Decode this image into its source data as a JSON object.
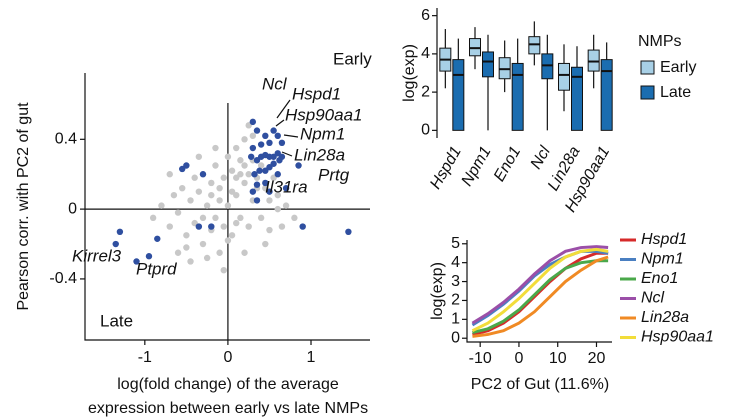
{
  "chart_data": [
    {
      "type": "scatter",
      "y_label": "Pearson corr. with PC2 of gut",
      "x_label": [
        "log(fold change) of the average",
        "expression between early vs late NMPs"
      ],
      "xlim": [
        -1.72,
        1.71
      ],
      "ylim": [
        -0.75,
        0.78
      ],
      "xticks": [
        -1,
        0,
        1
      ],
      "yticks": [
        -0.4,
        0,
        0.4
      ],
      "annotations": [
        "Early",
        "Late",
        "Ncl",
        "Hspd1",
        "Hsp90aa1",
        "Npm1",
        "Lin28a",
        "Prtg",
        "Il31ra",
        "Kirrel3",
        "Ptprd"
      ],
      "series": [
        {
          "color": "#c8c8c8",
          "x": [
            -0.9,
            -0.8,
            -0.7,
            -0.65,
            -0.6,
            -0.55,
            -0.5,
            -0.45,
            -0.4,
            -0.4,
            -0.35,
            -0.3,
            -0.3,
            -0.25,
            -0.2,
            -0.2,
            -0.15,
            -0.15,
            -0.1,
            -0.1,
            -0.05,
            -0.05,
            0,
            0,
            0.05,
            0.05,
            0.1,
            0.1,
            0.15,
            0.15,
            0.2,
            0.2,
            0.25,
            0.25,
            0.3,
            0.3,
            0.35,
            0.4,
            0.45,
            0.5,
            0.55,
            0.6,
            0.7,
            0.8,
            -0.6,
            -0.45,
            -0.3,
            -0.2,
            -0.1,
            0,
            0.1,
            0.2,
            0.3,
            0.4,
            0.5,
            0.6,
            -0.25,
            -0.15,
            0.05,
            0.15,
            0.25,
            0.35,
            -0.5,
            -0.35,
            0.45,
            0.65,
            -0.05,
            0.1,
            0.2,
            -0.7
          ],
          "y": [
            -0.05,
            0.02,
            -0.1,
            0.08,
            -0.02,
            0.12,
            -0.15,
            0.05,
            0.18,
            -0.08,
            0.1,
            0.2,
            -0.2,
            0.02,
            0.15,
            -0.12,
            0.25,
            -0.05,
            0.05,
            -0.25,
            0.18,
            -0.1,
            0.3,
            0.02,
            0.22,
            -0.15,
            0.35,
            0.08,
            0.28,
            -0.05,
            0.4,
            0.15,
            0.2,
            -0.1,
            0.42,
            0.05,
            0.18,
            0.25,
            0.12,
            0.05,
            0.18,
            0.08,
            0.02,
            -0.05,
            -0.25,
            -0.3,
            -0.05,
            0.08,
            0.12,
            -0.18,
            -0.08,
            0.25,
            0.28,
            -0.05,
            -0.12,
            0.0,
            -0.28,
            0.35,
            0.1,
            0.2,
            0.48,
            0.12,
            -0.22,
            0.3,
            -0.2,
            -0.1,
            -0.35,
            0.18,
            -0.25,
            0.2
          ]
        },
        {
          "color": "#2f4fa0",
          "x": [
            -1.35,
            -1.3,
            -1.1,
            -0.95,
            -0.85,
            -0.55,
            -0.5,
            -0.3,
            -0.35,
            -0.2,
            0.3,
            0.35,
            0.4,
            0.45,
            0.5,
            0.55,
            0.6,
            0.65,
            0.3,
            0.28,
            0.35,
            0.4,
            0.45,
            0.5,
            0.55,
            0.6,
            0.32,
            0.38,
            0.45,
            0.5,
            0.55,
            0.62,
            0.3,
            0.35,
            0.45,
            0.5,
            0.65,
            0.85,
            0.7,
            0.9,
            1.45,
            0.35,
            0.6
          ],
          "y": [
            -0.2,
            -0.13,
            -0.3,
            -0.27,
            -0.17,
            0.23,
            0.25,
            0.2,
            -0.1,
            -0.1,
            0.5,
            0.45,
            0.37,
            0.42,
            0.38,
            0.45,
            0.42,
            0.38,
            0.35,
            0.3,
            0.28,
            0.3,
            0.31,
            0.3,
            0.3,
            0.32,
            0.2,
            0.22,
            0.22,
            0.24,
            0.26,
            0.28,
            0.1,
            0.14,
            0.15,
            0.1,
            0.3,
            0.25,
            0.12,
            -0.1,
            -0.13,
            0.05,
            0.2
          ]
        }
      ]
    },
    {
      "type": "box",
      "y_label": "log(exp)",
      "legend_title": "NMPs",
      "ylim": [
        -0.4,
        6.4
      ],
      "yticks": [
        0,
        2,
        4,
        6
      ],
      "categories": [
        "Hspd1",
        "Npm1",
        "Eno1",
        "Ncl",
        "Lin28a",
        "Hsp90aa1"
      ],
      "series": [
        {
          "name": "Early",
          "color": "#a8d0e6",
          "values": [
            {
              "min": 2.2,
              "q1": 3.1,
              "median": 3.7,
              "q3": 4.3,
              "max": 5.3
            },
            {
              "min": 3.2,
              "q1": 3.9,
              "median": 4.3,
              "q3": 4.8,
              "max": 5.4
            },
            {
              "min": 2.0,
              "q1": 2.7,
              "median": 3.2,
              "q3": 3.8,
              "max": 4.7
            },
            {
              "min": 3.4,
              "q1": 4.0,
              "median": 4.5,
              "q3": 4.9,
              "max": 5.7
            },
            {
              "min": 1.0,
              "q1": 2.1,
              "median": 2.9,
              "q3": 3.5,
              "max": 4.5
            },
            {
              "min": 2.2,
              "q1": 3.1,
              "median": 3.6,
              "q3": 4.2,
              "max": 5.0
            }
          ]
        },
        {
          "name": "Late",
          "color": "#1b6db0",
          "values": [
            {
              "min": 0,
              "q1": 0,
              "median": 2.9,
              "q3": 3.7,
              "max": 4.8
            },
            {
              "min": 0,
              "q1": 2.8,
              "median": 3.6,
              "q3": 4.1,
              "max": 5.0
            },
            {
              "min": 0,
              "q1": 0,
              "median": 2.9,
              "q3": 3.5,
              "max": 4.8
            },
            {
              "min": 0,
              "q1": 2.7,
              "median": 3.4,
              "q3": 4.0,
              "max": 5.0
            },
            {
              "min": 0,
              "q1": 0,
              "median": 2.8,
              "q3": 3.3,
              "max": 4.4
            },
            {
              "min": 0,
              "q1": 0,
              "median": 3.1,
              "q3": 3.7,
              "max": 4.6
            }
          ]
        }
      ]
    },
    {
      "type": "line",
      "x_label": "PC2 of Gut (11.6%)",
      "y_label": "log(exp)",
      "xlim": [
        -13.4,
        24
      ],
      "ylim": [
        -0.2,
        5.2
      ],
      "xticks": [
        -10,
        0,
        10,
        20
      ],
      "yticks": [
        0,
        1,
        2,
        3,
        4,
        5
      ],
      "x": [
        -12,
        -8,
        -4,
        0,
        4,
        8,
        12,
        16,
        20,
        23
      ],
      "series": [
        {
          "name": "Hspd1",
          "color": "#d62a2a",
          "values": [
            0.2,
            0.4,
            0.8,
            1.4,
            2.2,
            3.0,
            3.7,
            4.2,
            4.5,
            4.5
          ]
        },
        {
          "name": "Npm1",
          "color": "#4a7fc1",
          "values": [
            0.7,
            1.2,
            1.8,
            2.5,
            3.3,
            3.9,
            4.3,
            4.6,
            4.6,
            4.5
          ]
        },
        {
          "name": "Eno1",
          "color": "#4aa84a",
          "values": [
            0.3,
            0.5,
            0.9,
            1.5,
            2.3,
            3.1,
            3.7,
            4.0,
            4.1,
            4.1
          ]
        },
        {
          "name": "Ncl",
          "color": "#9b4fa8",
          "values": [
            0.8,
            1.3,
            1.9,
            2.6,
            3.4,
            4.1,
            4.6,
            4.8,
            4.85,
            4.8
          ]
        },
        {
          "name": "Lin28a",
          "color": "#f08a24",
          "values": [
            0.1,
            0.2,
            0.4,
            0.8,
            1.4,
            2.2,
            3.0,
            3.6,
            4.1,
            4.3
          ]
        },
        {
          "name": "Hsp90aa1",
          "color": "#f2dd3a",
          "values": [
            0.4,
            0.8,
            1.4,
            2.1,
            2.9,
            3.7,
            4.3,
            4.6,
            4.7,
            4.6
          ]
        }
      ]
    }
  ]
}
